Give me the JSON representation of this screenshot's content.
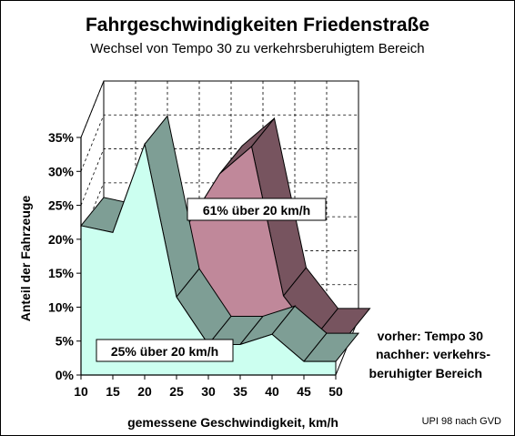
{
  "chart_data": {
    "type": "area",
    "title": "Fahrgeschwindigkeiten Friedenstraße",
    "subtitle": "Wechsel von Tempo 30 zu verkehrsberuhigtem Bereich",
    "xlabel": "gemessene Geschwindigkeit, km/h",
    "ylabel": "Anteil der Fahrzeuge",
    "x": [
      10,
      15,
      20,
      25,
      30,
      35,
      40,
      45,
      50
    ],
    "x_tick_labels": [
      "10",
      "15",
      "20",
      "25",
      "30",
      "35",
      "40",
      "45",
      "50"
    ],
    "y_tick_labels": [
      "0%",
      "5%",
      "10%",
      "15%",
      "20%",
      "25%",
      "30%",
      "35%"
    ],
    "ylim": [
      0,
      35
    ],
    "xlim": [
      10,
      50
    ],
    "grid": true,
    "three_d": true,
    "series": [
      {
        "name": "vorher: Tempo 30",
        "color": "#c0889a",
        "values": [
          0,
          0,
          0,
          18,
          25.5,
          29.5,
          7.5,
          1.5,
          1.5
        ]
      },
      {
        "name": "nachher: verkehrs- beruhigter Bereich",
        "color": "#ccfff0",
        "values": [
          22,
          21,
          34,
          11.5,
          4.5,
          4.5,
          6,
          2,
          2
        ]
      }
    ],
    "legend": {
      "placement": "right",
      "entries": [
        "vorher: Tempo 30",
        "nachher: verkehrs-",
        "beruhigter Bereich"
      ]
    },
    "annotations": [
      "61% über 20 km/h",
      "25% über 20 km/h"
    ],
    "credit": "UPI 98 nach GVD"
  }
}
